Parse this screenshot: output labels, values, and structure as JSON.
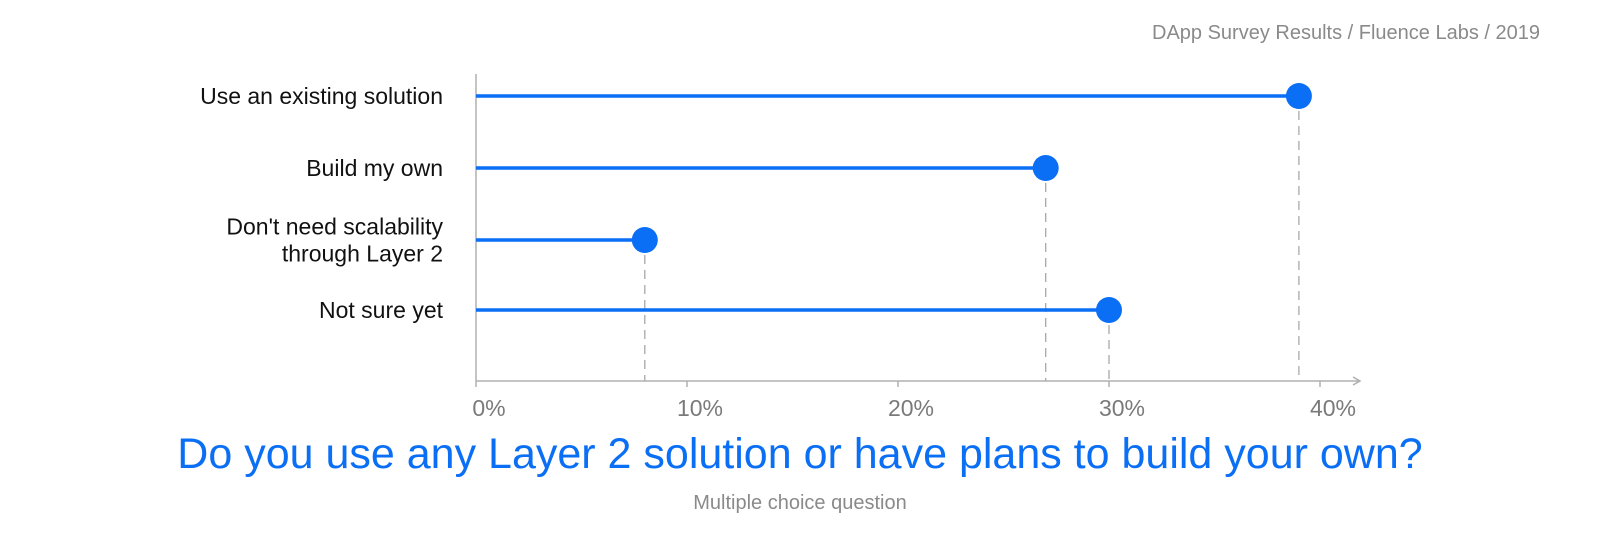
{
  "header": {
    "source": "DApp Survey Results / Fluence Labs / 2019"
  },
  "chart_data": {
    "type": "lollipop",
    "orientation": "horizontal",
    "title": "Do you use any Layer 2 solution or have plans to build your own?",
    "subtitle": "Multiple choice question",
    "categories": [
      [
        "Use an existing solution"
      ],
      [
        "Build my own"
      ],
      [
        "Don't need scalability",
        "through Layer 2"
      ],
      [
        "Not sure yet"
      ]
    ],
    "values": [
      39,
      27,
      8,
      30
    ],
    "unit": "%",
    "xlim": [
      0,
      42
    ],
    "xticks": [
      0,
      10,
      20,
      30,
      40
    ],
    "xtick_labels": [
      "0%",
      "10%",
      "20%",
      "30%",
      "40%"
    ],
    "grid": false,
    "colors": {
      "series": "#0a6ff5",
      "axis": "#b0b0b0",
      "label": "#111111",
      "tick": "#7a7a7a"
    }
  }
}
